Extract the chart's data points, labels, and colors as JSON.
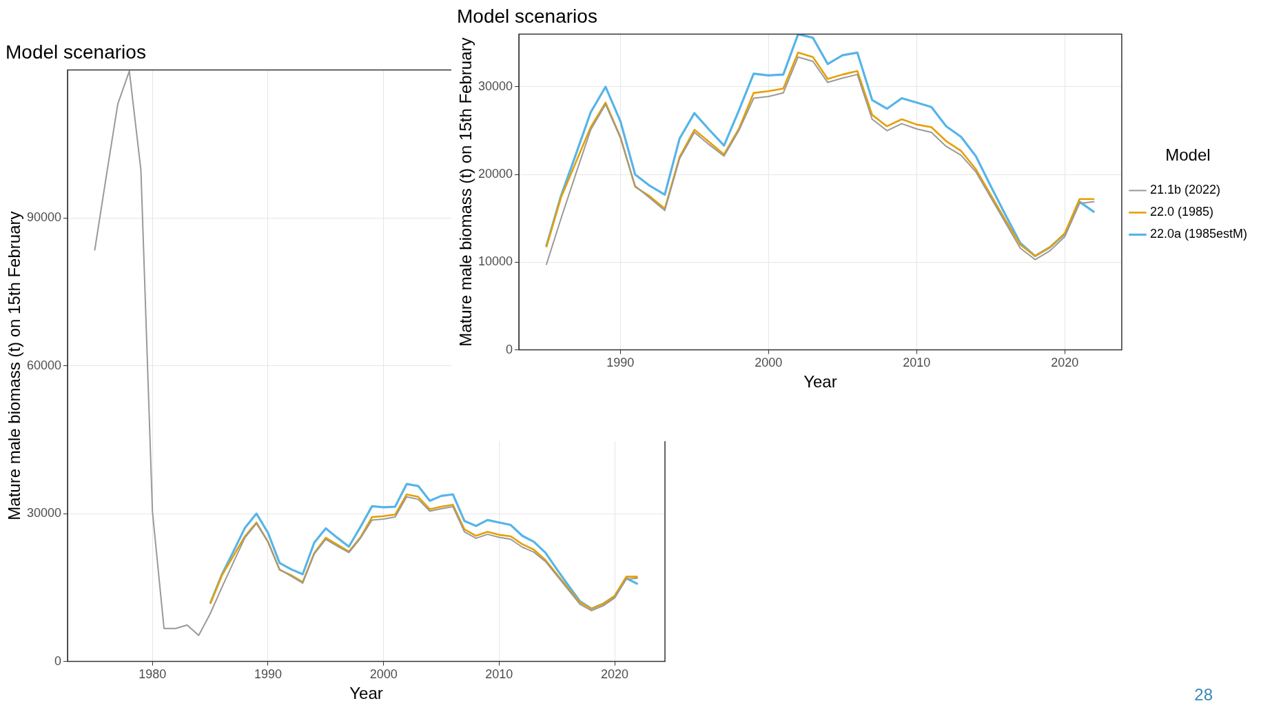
{
  "chart_data": [
    {
      "type": "line",
      "title": "Model scenarios",
      "xlabel": "Year",
      "ylabel": "Mature male biomass (t) on 15th February",
      "xlim": [
        1972.65,
        2024.35
      ],
      "ylim": [
        0,
        120000
      ],
      "xticks": [
        1980,
        1990,
        2000,
        2010,
        2020
      ],
      "yticks": [
        0,
        30000,
        60000,
        90000
      ],
      "grid": true,
      "legend": false,
      "annotations": [
        "28"
      ],
      "series": [
        {
          "color": "#999999",
          "x": [
            1975,
            1976,
            1977,
            1978,
            1979,
            1980,
            1981,
            1982,
            1983,
            1984,
            1985,
            1986,
            1987,
            1988,
            1989,
            1990,
            1991,
            1992,
            1993,
            1994,
            1995,
            1996,
            1997,
            1998,
            1999,
            2000,
            2001,
            2002,
            2003,
            2004,
            2005,
            2006,
            2007,
            2008,
            2009,
            2010,
            2011,
            2012,
            2013,
            2014,
            2015,
            2016,
            2017,
            2018,
            2019,
            2020,
            2021,
            2022
          ],
          "values": [
            83400,
            98400,
            113100,
            119800,
            99700,
            30400,
            6700,
            6700,
            7400,
            5300,
            9700,
            15000,
            20100,
            25100,
            28000,
            24200,
            18700,
            17300,
            15900,
            21800,
            24800,
            23400,
            22100,
            25000,
            28700,
            28900,
            29300,
            33400,
            32900,
            30500,
            31000,
            31400,
            26300,
            25000,
            25800,
            25200,
            24800,
            23200,
            22200,
            20300,
            17400,
            14500,
            11600,
            10300,
            11300,
            12900,
            16700,
            16900
          ]
        },
        {
          "color": "#e69f00",
          "x": [
            1985,
            1986,
            1987,
            1988,
            1989,
            1990,
            1991,
            1992,
            1993,
            1994,
            1995,
            1996,
            1997,
            1998,
            1999,
            2000,
            2001,
            2002,
            2003,
            2004,
            2005,
            2006,
            2007,
            2008,
            2009,
            2010,
            2011,
            2012,
            2013,
            2014,
            2015,
            2016,
            2017,
            2018,
            2019,
            2020,
            2021,
            2022
          ],
          "values": [
            11700,
            17400,
            21400,
            25400,
            28200,
            24300,
            18600,
            17500,
            16100,
            22000,
            25100,
            23700,
            22300,
            25200,
            29300,
            29500,
            29800,
            33900,
            33400,
            30900,
            31400,
            31800,
            26800,
            25500,
            26300,
            25700,
            25400,
            23800,
            22700,
            20600,
            17700,
            14800,
            12000,
            10700,
            11700,
            13300,
            17200,
            17200
          ]
        },
        {
          "color": "#56b4e9",
          "x": [
            1985,
            1986,
            1987,
            1988,
            1989,
            1990,
            1991,
            1992,
            1993,
            1994,
            1995,
            1996,
            1997,
            1998,
            1999,
            2000,
            2001,
            2002,
            2003,
            2004,
            2005,
            2006,
            2007,
            2008,
            2009,
            2010,
            2011,
            2012,
            2013,
            2014,
            2015,
            2016,
            2017,
            2018,
            2019,
            2020,
            2021,
            2022
          ],
          "values": [
            11800,
            17600,
            22300,
            27100,
            30000,
            26100,
            20000,
            18700,
            17700,
            24100,
            27000,
            25100,
            23300,
            27300,
            31500,
            31300,
            31400,
            36000,
            35600,
            32600,
            33600,
            33900,
            28500,
            27500,
            28700,
            28200,
            27700,
            25500,
            24300,
            22100,
            18700,
            15400,
            12200,
            10700,
            11700,
            13200,
            16900,
            15700
          ]
        }
      ]
    },
    {
      "type": "line",
      "title": "Model scenarios",
      "xlabel": "Year",
      "ylabel": "Mature male biomass (t) on 15th February",
      "xlim": [
        1983.15,
        2023.85
      ],
      "ylim": [
        0,
        36000
      ],
      "xticks": [
        1990,
        2000,
        2010,
        2020
      ],
      "yticks": [
        0,
        10000,
        20000,
        30000
      ],
      "grid": true,
      "legend": "right",
      "legend_title": "Model",
      "series": [
        {
          "name": "21.1b (2022)",
          "color": "#999999",
          "x": [
            1985,
            1986,
            1987,
            1988,
            1989,
            1990,
            1991,
            1992,
            1993,
            1994,
            1995,
            1996,
            1997,
            1998,
            1999,
            2000,
            2001,
            2002,
            2003,
            2004,
            2005,
            2006,
            2007,
            2008,
            2009,
            2010,
            2011,
            2012,
            2013,
            2014,
            2015,
            2016,
            2017,
            2018,
            2019,
            2020,
            2021,
            2022
          ],
          "values": [
            9700,
            15000,
            20100,
            25100,
            28000,
            24200,
            18700,
            17300,
            15900,
            21800,
            24800,
            23400,
            22100,
            25000,
            28700,
            28900,
            29300,
            33400,
            32900,
            30500,
            31000,
            31400,
            26300,
            25000,
            25800,
            25200,
            24800,
            23200,
            22200,
            20300,
            17400,
            14500,
            11600,
            10300,
            11300,
            12900,
            16700,
            16900
          ]
        },
        {
          "name": "22.0 (1985)",
          "color": "#e69f00",
          "x": [
            1985,
            1986,
            1987,
            1988,
            1989,
            1990,
            1991,
            1992,
            1993,
            1994,
            1995,
            1996,
            1997,
            1998,
            1999,
            2000,
            2001,
            2002,
            2003,
            2004,
            2005,
            2006,
            2007,
            2008,
            2009,
            2010,
            2011,
            2012,
            2013,
            2014,
            2015,
            2016,
            2017,
            2018,
            2019,
            2020,
            2021,
            2022
          ],
          "values": [
            11700,
            17400,
            21400,
            25400,
            28200,
            24300,
            18600,
            17500,
            16100,
            22000,
            25100,
            23700,
            22300,
            25200,
            29300,
            29500,
            29800,
            33900,
            33400,
            30900,
            31400,
            31800,
            26800,
            25500,
            26300,
            25700,
            25400,
            23800,
            22700,
            20600,
            17700,
            14800,
            12000,
            10700,
            11700,
            13300,
            17200,
            17200
          ]
        },
        {
          "name": "22.0a (1985estM)",
          "color": "#56b4e9",
          "x": [
            1985,
            1986,
            1987,
            1988,
            1989,
            1990,
            1991,
            1992,
            1993,
            1994,
            1995,
            1996,
            1997,
            1998,
            1999,
            2000,
            2001,
            2002,
            2003,
            2004,
            2005,
            2006,
            2007,
            2008,
            2009,
            2010,
            2011,
            2012,
            2013,
            2014,
            2015,
            2016,
            2017,
            2018,
            2019,
            2020,
            2021,
            2022
          ],
          "values": [
            11800,
            17600,
            22300,
            27100,
            30000,
            26100,
            20000,
            18700,
            17700,
            24100,
            27000,
            25100,
            23300,
            27300,
            31500,
            31300,
            31400,
            36000,
            35600,
            32600,
            33600,
            33900,
            28500,
            27500,
            28700,
            28200,
            27700,
            25500,
            24300,
            22100,
            18700,
            15400,
            12200,
            10700,
            11700,
            13200,
            16900,
            15700
          ]
        }
      ]
    }
  ]
}
